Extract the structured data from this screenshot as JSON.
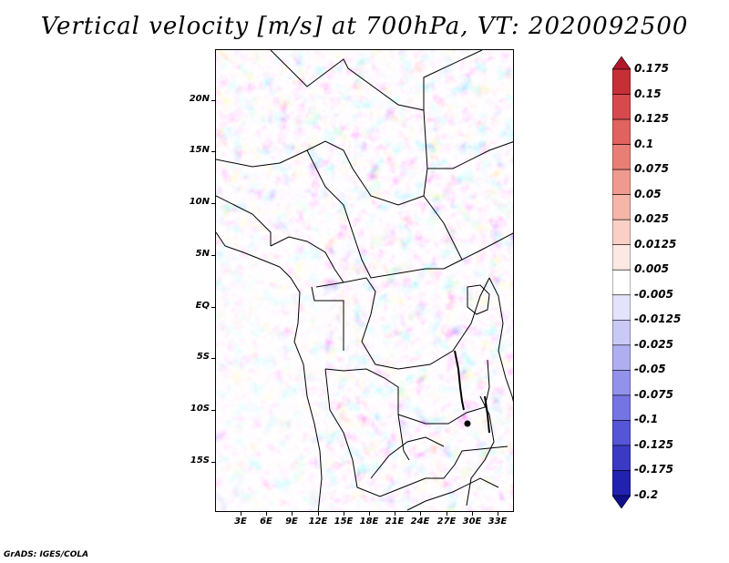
{
  "title": "Vertical velocity [m/s] at 700hPa, VT: 2020092500",
  "credit": "GrADS: IGES/COLA",
  "map": {
    "lat_labels": [
      "20N",
      "15N",
      "10N",
      "5N",
      "EQ",
      "5S",
      "10S",
      "15S"
    ],
    "lon_labels": [
      "3E",
      "6E",
      "9E",
      "12E",
      "15E",
      "18E",
      "21E",
      "24E",
      "27E",
      "30E",
      "33E"
    ]
  },
  "colorbar": {
    "levels": [
      "0.175",
      "0.15",
      "0.125",
      "0.1",
      "0.075",
      "0.05",
      "0.025",
      "0.0125",
      "0.005",
      "-0.005",
      "-0.0125",
      "-0.025",
      "-0.05",
      "-0.075",
      "-0.1",
      "-0.125",
      "-0.175",
      "-0.2"
    ],
    "colors": [
      "#b2182b",
      "#c72f37",
      "#d6494c",
      "#e0635f",
      "#e87f76",
      "#ef9a8f",
      "#f5b5a9",
      "#fad0c6",
      "#fde9e3",
      "#ffffff",
      "#e3e3fb",
      "#c9c9f6",
      "#aeaef1",
      "#9292ea",
      "#7474e2",
      "#5555d6",
      "#3a3ac4",
      "#2222b0",
      "#10108a"
    ]
  }
}
